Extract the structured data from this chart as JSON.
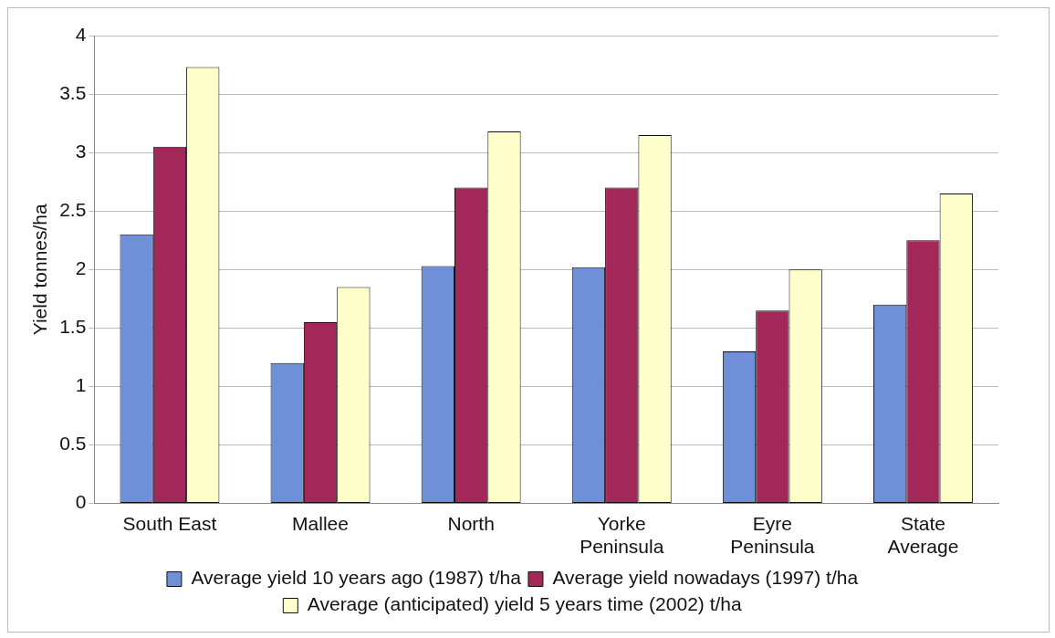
{
  "chart_data": {
    "type": "bar",
    "ylabel": "Yield tonnes/ha",
    "categories": [
      "South East",
      "Mallee",
      "North",
      "Yorke Peninsula",
      "Eyre Peninsula",
      "State Average"
    ],
    "series": [
      {
        "name": "Average yield 10 years ago (1987) t/ha",
        "color": "#6f8fd8",
        "values": [
          2.3,
          1.2,
          2.03,
          2.02,
          1.3,
          1.7
        ]
      },
      {
        "name": "Average yield nowadays (1997) t/ha",
        "color": "#a3285a",
        "values": [
          3.05,
          1.55,
          2.7,
          2.7,
          1.65,
          2.25
        ]
      },
      {
        "name": "Average (anticipated) yield 5 years time (2002) t/ha",
        "color": "#ffffcc",
        "values": [
          3.73,
          1.85,
          3.18,
          3.15,
          2,
          2.65
        ]
      }
    ],
    "ylim": [
      0,
      4
    ],
    "yticks": [
      0,
      0.5,
      1,
      1.5,
      2,
      2.5,
      3,
      3.5,
      4
    ],
    "grid": "y",
    "legend": "bottom"
  }
}
